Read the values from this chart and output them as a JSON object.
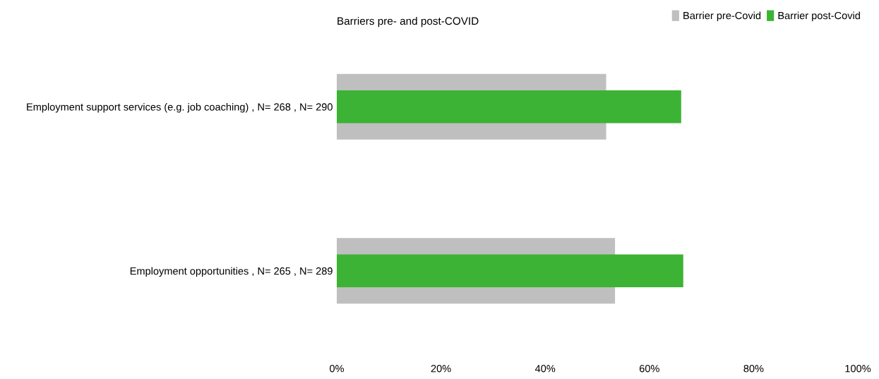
{
  "chart_data": {
    "type": "bar",
    "orientation": "horizontal",
    "title": "Barriers pre- and post-COVID",
    "categories": [
      "Employment support services (e.g. job coaching) , N= 268 , N= 290",
      "Employment opportunities , N= 265 , N= 289"
    ],
    "series": [
      {
        "name": "Barrier pre-Covid",
        "color": "#bfbfbf",
        "values": [
          51.7,
          53.4
        ]
      },
      {
        "name": "Barrier post-Covid",
        "color": "#3cb334",
        "values": [
          66.1,
          66.5
        ]
      }
    ],
    "xlim": [
      0,
      100
    ],
    "xticks": [
      {
        "value": 0,
        "label": "0%"
      },
      {
        "value": 20,
        "label": "20%"
      },
      {
        "value": 40,
        "label": "40%"
      },
      {
        "value": 60,
        "label": "60%"
      },
      {
        "value": 80,
        "label": "80%"
      },
      {
        "value": 100,
        "label": "100%"
      }
    ],
    "grid": false,
    "legend": "top right"
  }
}
